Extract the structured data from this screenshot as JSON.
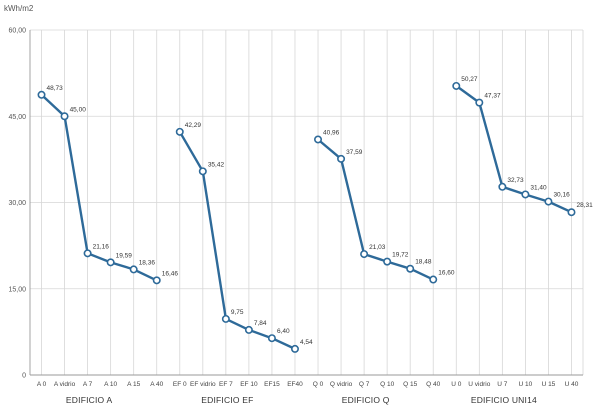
{
  "chart_data": {
    "type": "line",
    "title": "",
    "xlabel": "",
    "ylabel": "kWh/m2",
    "ylim": [
      0,
      60
    ],
    "yticks": [
      "0",
      "15,00",
      "30,00",
      "45,00",
      "60,00"
    ],
    "ytick_values": [
      0,
      15,
      30,
      45,
      60
    ],
    "grid": true,
    "legend": "none",
    "line_color": "#2e6a99",
    "groups": [
      {
        "label": "EDIFICIO A",
        "categories": [
          "A 0",
          "A vidrio",
          "A 7",
          "A 10",
          "A 15",
          "A 40"
        ],
        "values": [
          48.73,
          45.0,
          21.16,
          19.59,
          18.36,
          16.46
        ],
        "value_labels": [
          "48,73",
          "45,00",
          "21,16",
          "19,59",
          "18,36",
          "16,46"
        ]
      },
      {
        "label": "EDIFICIO EF",
        "categories": [
          "EF 0",
          "EF vidrio",
          "EF 7",
          "EF 10",
          "EF15",
          "EF40"
        ],
        "values": [
          42.29,
          35.42,
          9.75,
          7.84,
          6.4,
          4.54
        ],
        "value_labels": [
          "42,29",
          "35,42",
          "9,75",
          "7,84",
          "6,40",
          "4,54"
        ]
      },
      {
        "label": "EDIFICIO Q",
        "categories": [
          "Q 0",
          "Q vidrio",
          "Q 7",
          "Q 10",
          "Q 15",
          "Q 40"
        ],
        "values": [
          40.96,
          37.59,
          21.03,
          19.72,
          18.48,
          16.6
        ],
        "value_labels": [
          "40,96",
          "37,59",
          "21,03",
          "19,72",
          "18,48",
          "16,60"
        ]
      },
      {
        "label": "EDIFICIO UNI14",
        "categories": [
          "U 0",
          "U vidrio",
          "U 7",
          "U 10",
          "U 15",
          "U 40"
        ],
        "values": [
          50.27,
          47.37,
          32.73,
          31.4,
          30.16,
          28.31
        ],
        "value_labels": [
          "50,27",
          "47,37",
          "32,73",
          "31,40",
          "30,16",
          "28,31"
        ]
      }
    ]
  }
}
